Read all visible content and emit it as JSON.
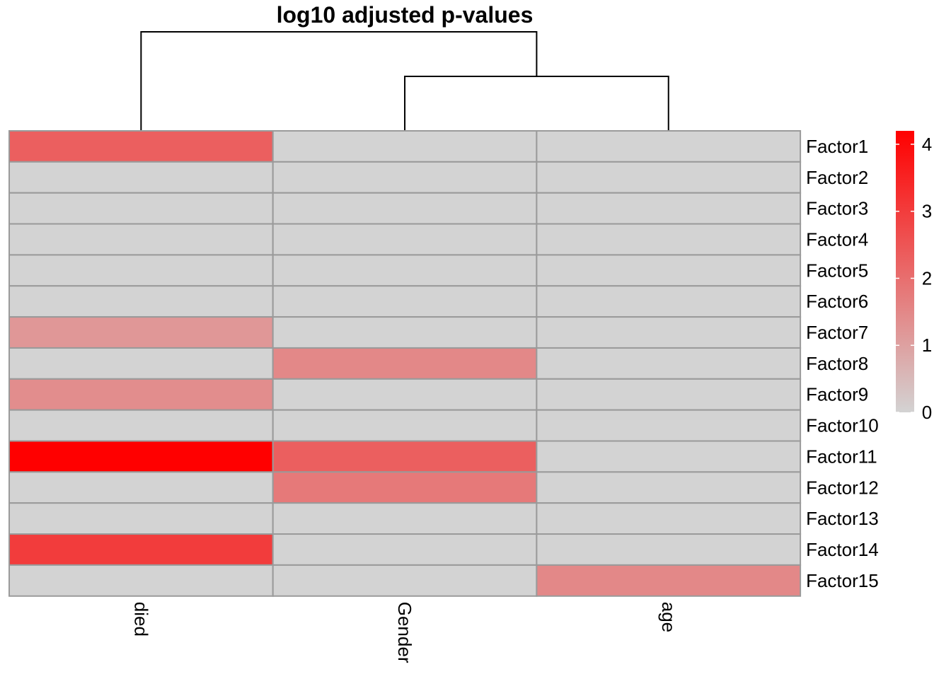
{
  "chart_data": {
    "type": "heatmap",
    "title": "log10 adjusted p-values",
    "columns": [
      "died",
      "Gender",
      "age"
    ],
    "rows": [
      "Factor1",
      "Factor2",
      "Factor3",
      "Factor4",
      "Factor5",
      "Factor6",
      "Factor7",
      "Factor8",
      "Factor9",
      "Factor10",
      "Factor11",
      "Factor12",
      "Factor13",
      "Factor14",
      "Factor15"
    ],
    "values": [
      [
        2.3,
        0,
        0
      ],
      [
        0,
        0,
        0
      ],
      [
        0,
        0,
        0
      ],
      [
        0,
        0,
        0
      ],
      [
        0,
        0,
        0
      ],
      [
        0,
        0,
        0
      ],
      [
        1.2,
        0,
        0
      ],
      [
        0,
        1.5,
        0
      ],
      [
        1.4,
        0,
        0
      ],
      [
        0,
        0,
        0
      ],
      [
        4.2,
        2.3,
        0
      ],
      [
        0,
        1.8,
        0
      ],
      [
        0,
        0,
        0
      ],
      [
        3.0,
        0,
        0
      ],
      [
        0,
        0,
        1.5
      ]
    ],
    "color_scale": {
      "min": 0,
      "max": 4.2,
      "low_color": "#D3D3D3",
      "high_color": "#FF0000"
    },
    "legend": {
      "ticks": [
        0,
        1,
        2,
        3,
        4
      ],
      "placement": "right"
    },
    "column_dendrogram": {
      "merges": [
        [
          "Gender",
          "age"
        ],
        [
          "died",
          "Gender+age"
        ]
      ]
    },
    "grid": true
  }
}
